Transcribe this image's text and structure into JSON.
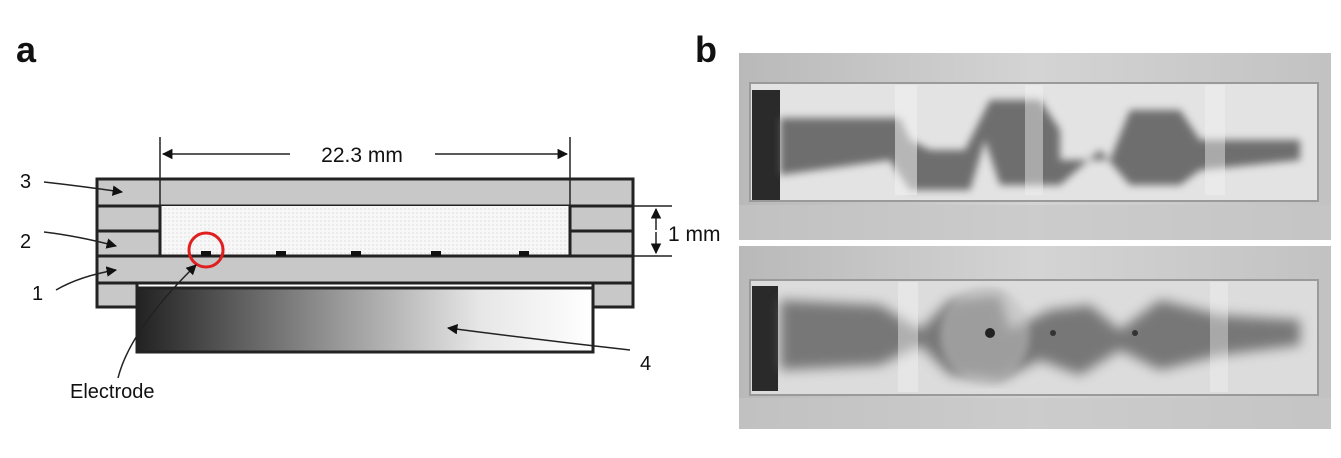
{
  "panel_a": {
    "label": "a",
    "dimension_width": "22.3 mm",
    "dimension_height": "1 mm",
    "layer_labels": {
      "l1": "1",
      "l2": "2",
      "l3": "3",
      "l4": "4"
    },
    "electrode_label": "Electrode",
    "colors": {
      "layer_fill": "#c8c8c8",
      "outline": "#222222",
      "highlight": "#e02020"
    }
  },
  "panel_b": {
    "label": "b",
    "photos": [
      "top-photo",
      "bottom-photo"
    ]
  }
}
